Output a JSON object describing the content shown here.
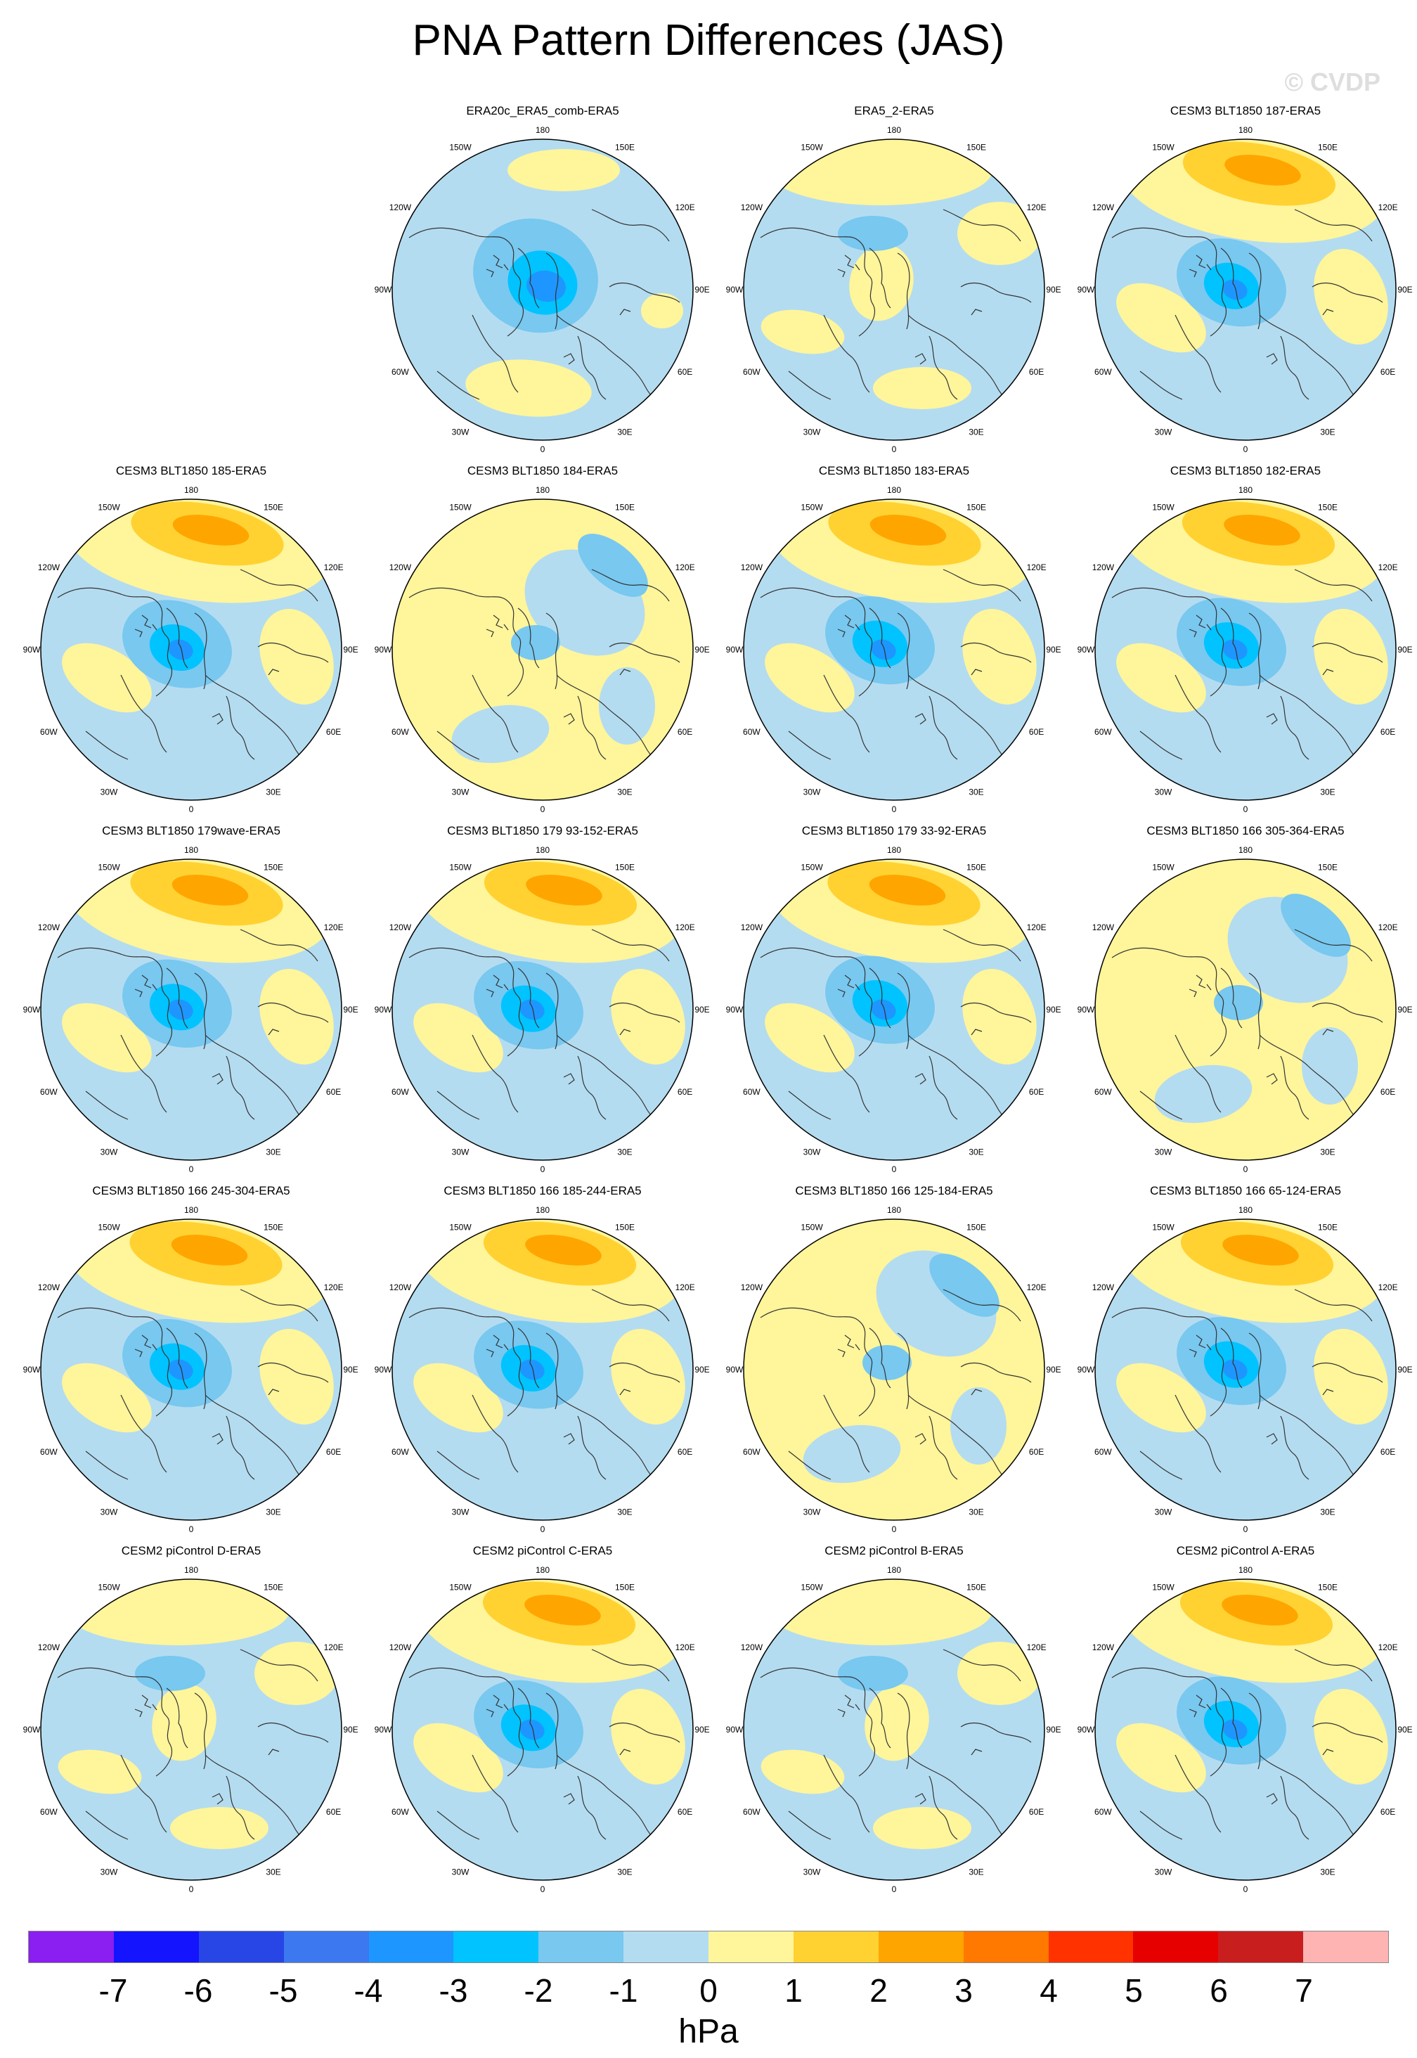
{
  "title": "PNA Pattern Differences (JAS)",
  "watermark": "© CVDP",
  "longitude_labels": [
    "180",
    "150E",
    "120E",
    "90E",
    "60E",
    "30E",
    "0",
    "30W",
    "60W",
    "90W",
    "120W",
    "150W"
  ],
  "panels": [
    {
      "row": 0,
      "col": 1,
      "title": "ERA20c_ERA5_comb-ERA5",
      "pattern": "low"
    },
    {
      "row": 0,
      "col": 2,
      "title": "ERA5_2-ERA5",
      "pattern": "weak"
    },
    {
      "row": 0,
      "col": 3,
      "title": "CESM3 BLT1850 187-ERA5",
      "pattern": "dipole"
    },
    {
      "row": 1,
      "col": 0,
      "title": "CESM3 BLT1850 185-ERA5",
      "pattern": "dipole"
    },
    {
      "row": 1,
      "col": 1,
      "title": "CESM3 BLT1850 184-ERA5",
      "pattern": "positive"
    },
    {
      "row": 1,
      "col": 2,
      "title": "CESM3 BLT1850 183-ERA5",
      "pattern": "dipole"
    },
    {
      "row": 1,
      "col": 3,
      "title": "CESM3 BLT1850 182-ERA5",
      "pattern": "dipole"
    },
    {
      "row": 2,
      "col": 0,
      "title": "CESM3 BLT1850 179wave-ERA5",
      "pattern": "dipole"
    },
    {
      "row": 2,
      "col": 1,
      "title": "CESM3 BLT1850 179 93-152-ERA5",
      "pattern": "dipole"
    },
    {
      "row": 2,
      "col": 2,
      "title": "CESM3 BLT1850 179 33-92-ERA5",
      "pattern": "dipole"
    },
    {
      "row": 2,
      "col": 3,
      "title": "CESM3 BLT1850 166 305-364-ERA5",
      "pattern": "positive"
    },
    {
      "row": 3,
      "col": 0,
      "title": "CESM3 BLT1850 166 245-304-ERA5",
      "pattern": "dipole"
    },
    {
      "row": 3,
      "col": 1,
      "title": "CESM3 BLT1850 166 185-244-ERA5",
      "pattern": "dipole"
    },
    {
      "row": 3,
      "col": 2,
      "title": "CESM3 BLT1850 166 125-184-ERA5",
      "pattern": "positive"
    },
    {
      "row": 3,
      "col": 3,
      "title": "CESM3 BLT1850 166 65-124-ERA5",
      "pattern": "dipole"
    },
    {
      "row": 4,
      "col": 0,
      "title": "CESM2 piControl D-ERA5",
      "pattern": "weak"
    },
    {
      "row": 4,
      "col": 1,
      "title": "CESM2 piControl C-ERA5",
      "pattern": "dipole"
    },
    {
      "row": 4,
      "col": 2,
      "title": "CESM2 piControl B-ERA5",
      "pattern": "weak"
    },
    {
      "row": 4,
      "col": 3,
      "title": "CESM2 piControl A-ERA5",
      "pattern": "dipole"
    }
  ],
  "colorbar": {
    "units": "hPa",
    "labels": [
      "-7",
      "-6",
      "-5",
      "-4",
      "-3",
      "-2",
      "-1",
      "0",
      "1",
      "2",
      "3",
      "4",
      "5",
      "6",
      "7"
    ],
    "colors": [
      "#8b1ef0",
      "#1414ff",
      "#2846e6",
      "#3c78f0",
      "#1e96ff",
      "#00c3ff",
      "#78c8f0",
      "#b4dcf0",
      "#fff59b",
      "#ffd232",
      "#ffa500",
      "#ff7800",
      "#ff3200",
      "#e60000",
      "#c81e1e",
      "#ffb4b4"
    ]
  }
}
